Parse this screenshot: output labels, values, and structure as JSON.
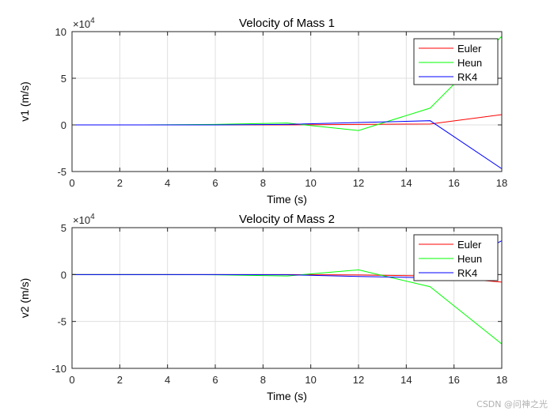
{
  "chart_data": [
    {
      "type": "line",
      "title": "Velocity of Mass 1",
      "xlabel": "Time (s)",
      "ylabel": "v1 (m/s)",
      "exponent_label": "×10",
      "exponent_power": "4",
      "xlim": [
        0,
        18
      ],
      "ylim": [
        -5,
        10
      ],
      "xticks": [
        0,
        2,
        4,
        6,
        8,
        10,
        12,
        14,
        16,
        18
      ],
      "yticks": [
        -5,
        0,
        5,
        10
      ],
      "grid": true,
      "legend_position": "top-right",
      "series": [
        {
          "name": "Euler",
          "color": "#ff0000",
          "x": [
            0,
            3,
            6,
            9,
            12,
            15,
            18
          ],
          "y": [
            0,
            0,
            0,
            0,
            0.05,
            0.1,
            1.1
          ]
        },
        {
          "name": "Heun",
          "color": "#00ff00",
          "x": [
            0,
            3,
            6,
            9,
            12,
            15,
            18
          ],
          "y": [
            0,
            0,
            0.05,
            0.2,
            -0.6,
            1.8,
            9.5
          ]
        },
        {
          "name": "RK4",
          "color": "#0000ff",
          "x": [
            0,
            3,
            6,
            9,
            12,
            15,
            18
          ],
          "y": [
            0,
            0,
            0,
            0.05,
            0.25,
            0.45,
            -4.7
          ]
        }
      ]
    },
    {
      "type": "line",
      "title": "Velocity of Mass 2",
      "xlabel": "Time (s)",
      "ylabel": "v2 (m/s)",
      "exponent_label": "×10",
      "exponent_power": "4",
      "xlim": [
        0,
        18
      ],
      "ylim": [
        -10,
        5
      ],
      "xticks": [
        0,
        2,
        4,
        6,
        8,
        10,
        12,
        14,
        16,
        18
      ],
      "yticks": [
        -10,
        -5,
        0,
        5
      ],
      "grid": true,
      "legend_position": "top-right",
      "series": [
        {
          "name": "Euler",
          "color": "#ff0000",
          "x": [
            0,
            3,
            6,
            9,
            12,
            15,
            18
          ],
          "y": [
            0,
            0,
            0,
            0,
            -0.05,
            -0.15,
            -0.8
          ]
        },
        {
          "name": "Heun",
          "color": "#00ff00",
          "x": [
            0,
            3,
            6,
            9,
            12,
            15,
            18
          ],
          "y": [
            0,
            0,
            -0.02,
            -0.15,
            0.5,
            -1.3,
            -7.4
          ]
        },
        {
          "name": "RK4",
          "color": "#0000ff",
          "x": [
            0,
            3,
            6,
            9,
            12,
            15,
            18
          ],
          "y": [
            0,
            0,
            0,
            -0.02,
            -0.2,
            -0.35,
            3.6
          ]
        }
      ]
    }
  ],
  "watermark": "CSDN @问神之光"
}
